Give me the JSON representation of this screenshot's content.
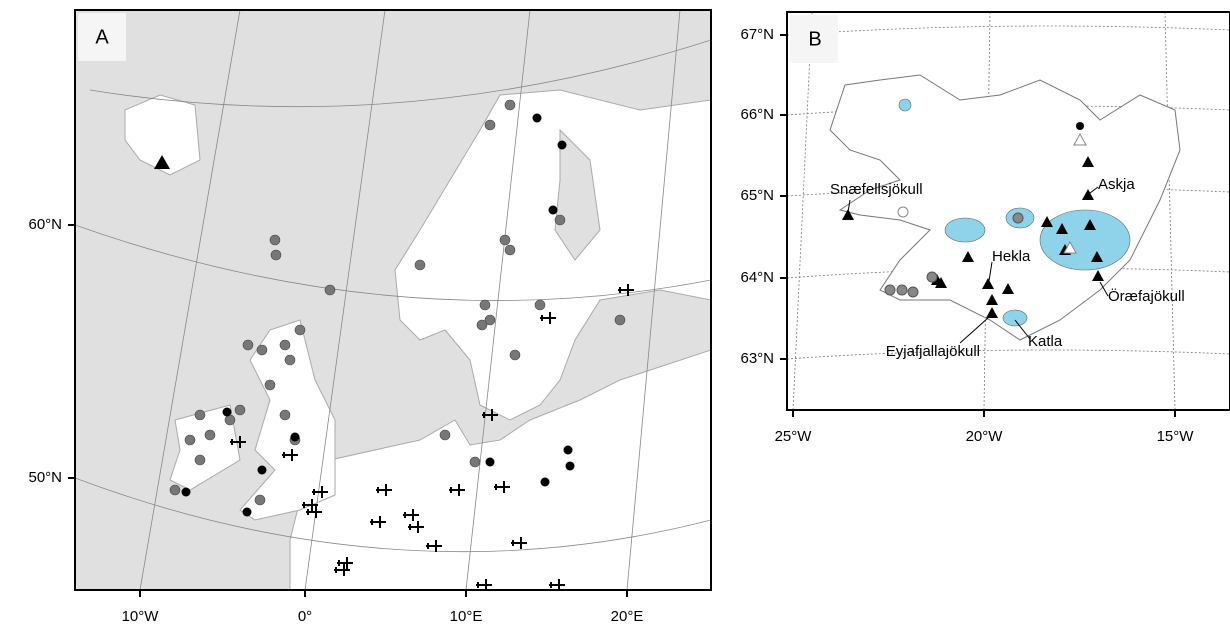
{
  "panels": [
    {
      "label": "A",
      "xticks": [
        "10°W",
        "0°",
        "10°E",
        "20°E"
      ],
      "yticks": [
        "60°N",
        "50°N"
      ]
    },
    {
      "label": "B",
      "xticks": [
        "25°W",
        "20°W",
        "15°W"
      ],
      "yticks": [
        "67°N",
        "66°N",
        "65°N",
        "64°N",
        "63°N"
      ],
      "annotations": [
        "Snæfellsjökull",
        "Askja",
        "Hekla",
        "Öræfajökull",
        "Eyjafjallajökull",
        "Katla"
      ]
    }
  ]
}
